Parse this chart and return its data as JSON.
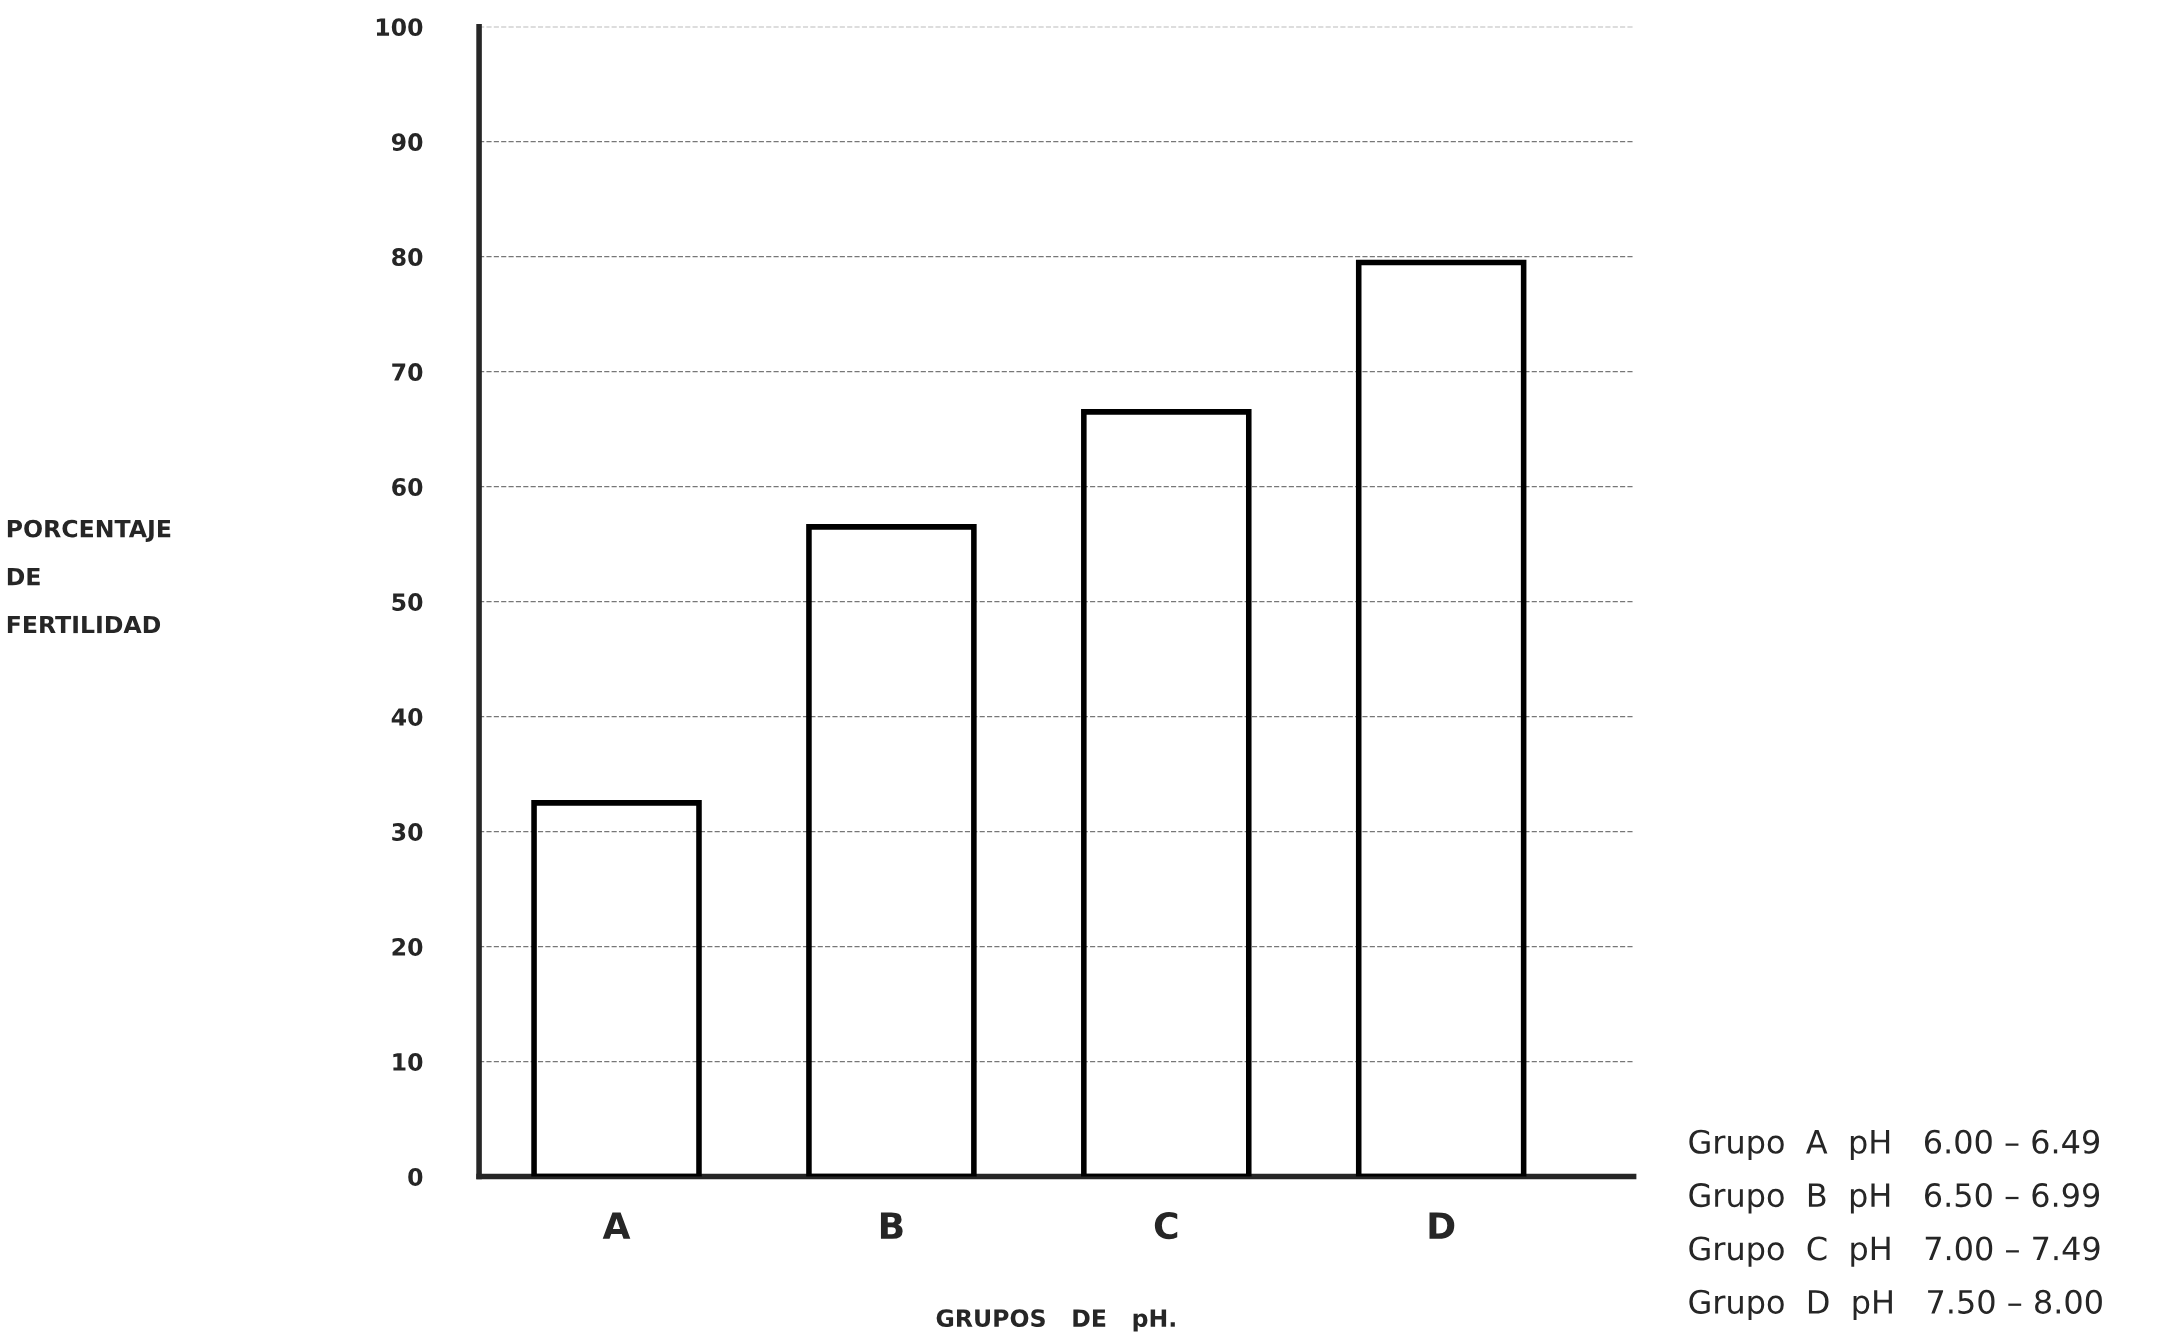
{
  "chart_data": {
    "type": "bar",
    "categories": [
      "A",
      "B",
      "C",
      "D"
    ],
    "values": [
      32.5,
      56.5,
      66.5,
      79.5
    ],
    "color": "#000000",
    "ylabel": "PORCENTAJE\nDE\nFERTILIDAD",
    "xlabel": "GRUPOS   DE   pH.",
    "ylim": [
      0,
      100
    ],
    "yticks": [
      0,
      10,
      20,
      30,
      40,
      50,
      60,
      70,
      80,
      90,
      100
    ],
    "grid": true,
    "annotations": [
      "Grupo  A  pH   6.00 – 6.49",
      "Grupo  B  pH   6.50 – 6.99",
      "Grupo  C  pH   7.00 – 7.49",
      "Grupo  D  pH   7.50 – 8.00"
    ]
  }
}
